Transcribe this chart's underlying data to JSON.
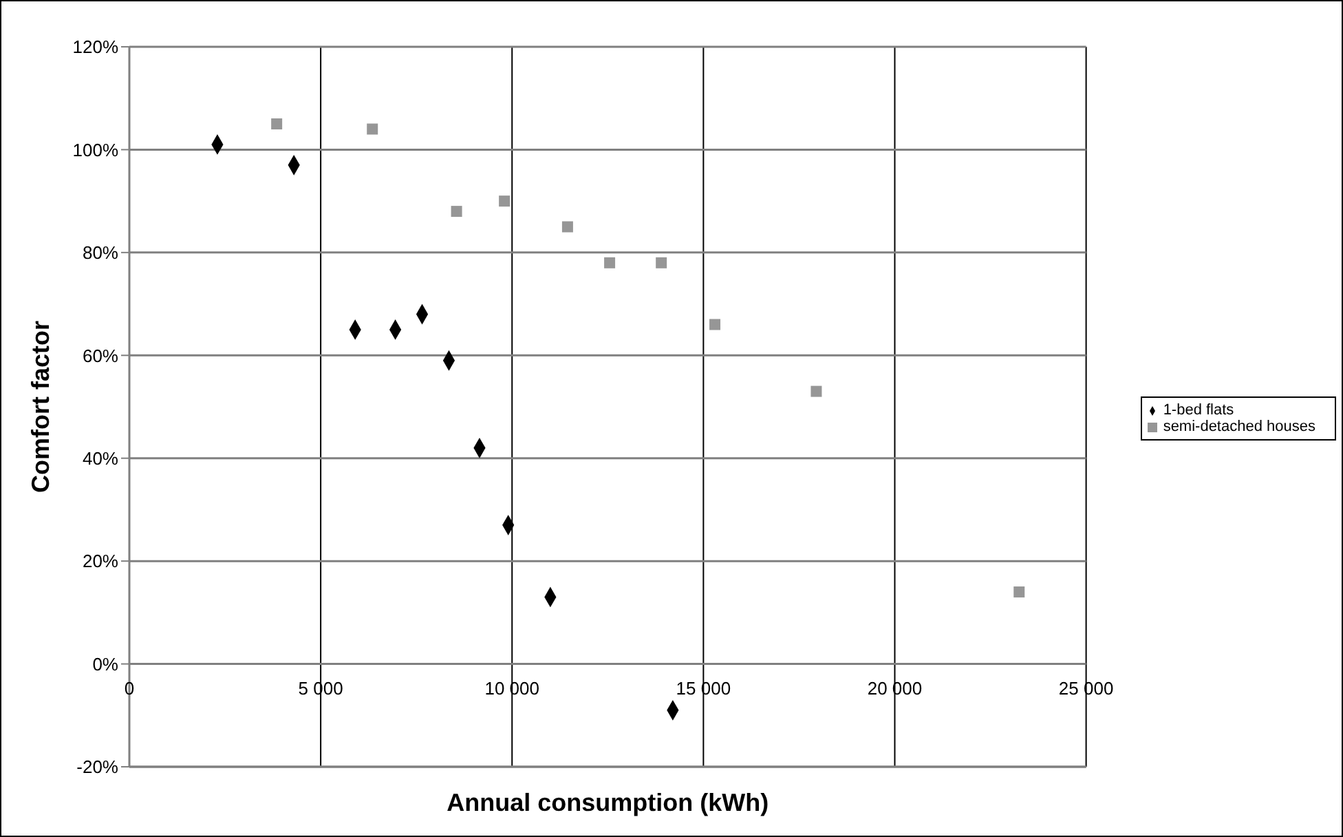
{
  "chart_data": {
    "type": "scatter",
    "xlabel": "Annual consumption (kWh)",
    "ylabel": "Comfort factor",
    "xlim": [
      0,
      25000
    ],
    "xticks": [
      0,
      {
        "value": 5000,
        "label": "5 000"
      },
      {
        "value": 10000,
        "label": "10 000"
      },
      {
        "value": 15000,
        "label": "15 000"
      },
      {
        "value": 20000,
        "label": "20 000"
      },
      {
        "value": 25000,
        "label": "25 000"
      }
    ],
    "ylim": [
      -20,
      120
    ],
    "yticks": [
      {
        "value": -20,
        "label": "-20%"
      },
      {
        "value": 0,
        "label": "0%"
      },
      {
        "value": 20,
        "label": "20%"
      },
      {
        "value": 40,
        "label": "40%"
      },
      {
        "value": 60,
        "label": "60%"
      },
      {
        "value": 80,
        "label": "80%"
      },
      {
        "value": 100,
        "label": "100%"
      },
      {
        "value": 120,
        "label": "120%"
      }
    ],
    "grid": true,
    "legend": "right",
    "series": [
      {
        "name": "1-bed flats",
        "color": "#000000",
        "marker": "diamond",
        "x": [
          2300,
          4300,
          5900,
          6950,
          7650,
          8350,
          9150,
          9900,
          11000,
          14200
        ],
        "values": [
          101,
          97,
          65,
          65,
          68,
          59,
          42,
          27,
          13,
          -9
        ]
      },
      {
        "name": "semi-detached houses",
        "color": "#969696",
        "marker": "square",
        "x": [
          3850,
          6350,
          8550,
          9800,
          11450,
          12550,
          13900,
          15300,
          17950,
          23250
        ],
        "values": [
          105,
          104,
          88,
          90,
          85,
          78,
          78,
          66,
          53,
          14
        ]
      }
    ]
  }
}
